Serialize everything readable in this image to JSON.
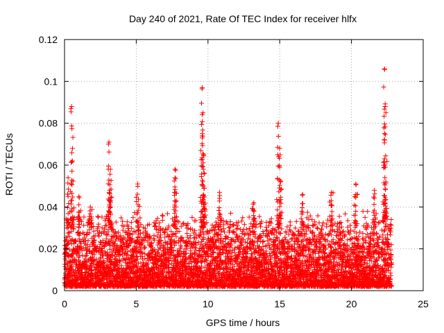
{
  "chart_data": {
    "type": "scatter",
    "title": "Day 240 of 2021, Rate Of TEC Index for receiver hlfx",
    "xlabel": "GPS time / hours",
    "ylabel": "ROTI / TECUs",
    "xlim": [
      0,
      25
    ],
    "ylim": [
      0,
      0.12
    ],
    "x_ticks": [
      0,
      5,
      10,
      15,
      20,
      25
    ],
    "x_tick_labels": [
      "0",
      "5",
      "10",
      "15",
      "20",
      "25"
    ],
    "y_ticks": [
      0,
      0.02,
      0.04,
      0.06,
      0.08,
      0.1,
      0.12
    ],
    "y_tick_labels": [
      "0",
      "0.02",
      "0.04",
      "0.06",
      "0.08",
      "0.1",
      "0.12"
    ],
    "grid": true,
    "marker": "+",
    "series": [
      {
        "name": "ROTI",
        "color": "#ff0000",
        "x_range": [
          0,
          22.8
        ],
        "baseline_range": [
          0.002,
          0.03
        ],
        "peaks": [
          {
            "x": 0.25,
            "y": 0.054
          },
          {
            "x": 0.5,
            "y": 0.088
          },
          {
            "x": 0.55,
            "y": 0.062
          },
          {
            "x": 1.0,
            "y": 0.045
          },
          {
            "x": 1.8,
            "y": 0.04
          },
          {
            "x": 3.1,
            "y": 0.071
          },
          {
            "x": 3.2,
            "y": 0.058
          },
          {
            "x": 3.15,
            "y": 0.048
          },
          {
            "x": 5.1,
            "y": 0.051
          },
          {
            "x": 7.7,
            "y": 0.058
          },
          {
            "x": 7.7,
            "y": 0.054
          },
          {
            "x": 9.6,
            "y": 0.097
          },
          {
            "x": 9.65,
            "y": 0.085
          },
          {
            "x": 9.6,
            "y": 0.075
          },
          {
            "x": 9.7,
            "y": 0.065
          },
          {
            "x": 9.7,
            "y": 0.05
          },
          {
            "x": 10.8,
            "y": 0.047
          },
          {
            "x": 13.2,
            "y": 0.042
          },
          {
            "x": 14.9,
            "y": 0.08
          },
          {
            "x": 15.0,
            "y": 0.068
          },
          {
            "x": 15.05,
            "y": 0.052
          },
          {
            "x": 16.6,
            "y": 0.046
          },
          {
            "x": 18.6,
            "y": 0.047
          },
          {
            "x": 20.3,
            "y": 0.051
          },
          {
            "x": 21.6,
            "y": 0.048
          },
          {
            "x": 22.3,
            "y": 0.106
          },
          {
            "x": 22.35,
            "y": 0.088
          },
          {
            "x": 22.3,
            "y": 0.063
          },
          {
            "x": 22.4,
            "y": 0.052
          }
        ]
      }
    ]
  }
}
